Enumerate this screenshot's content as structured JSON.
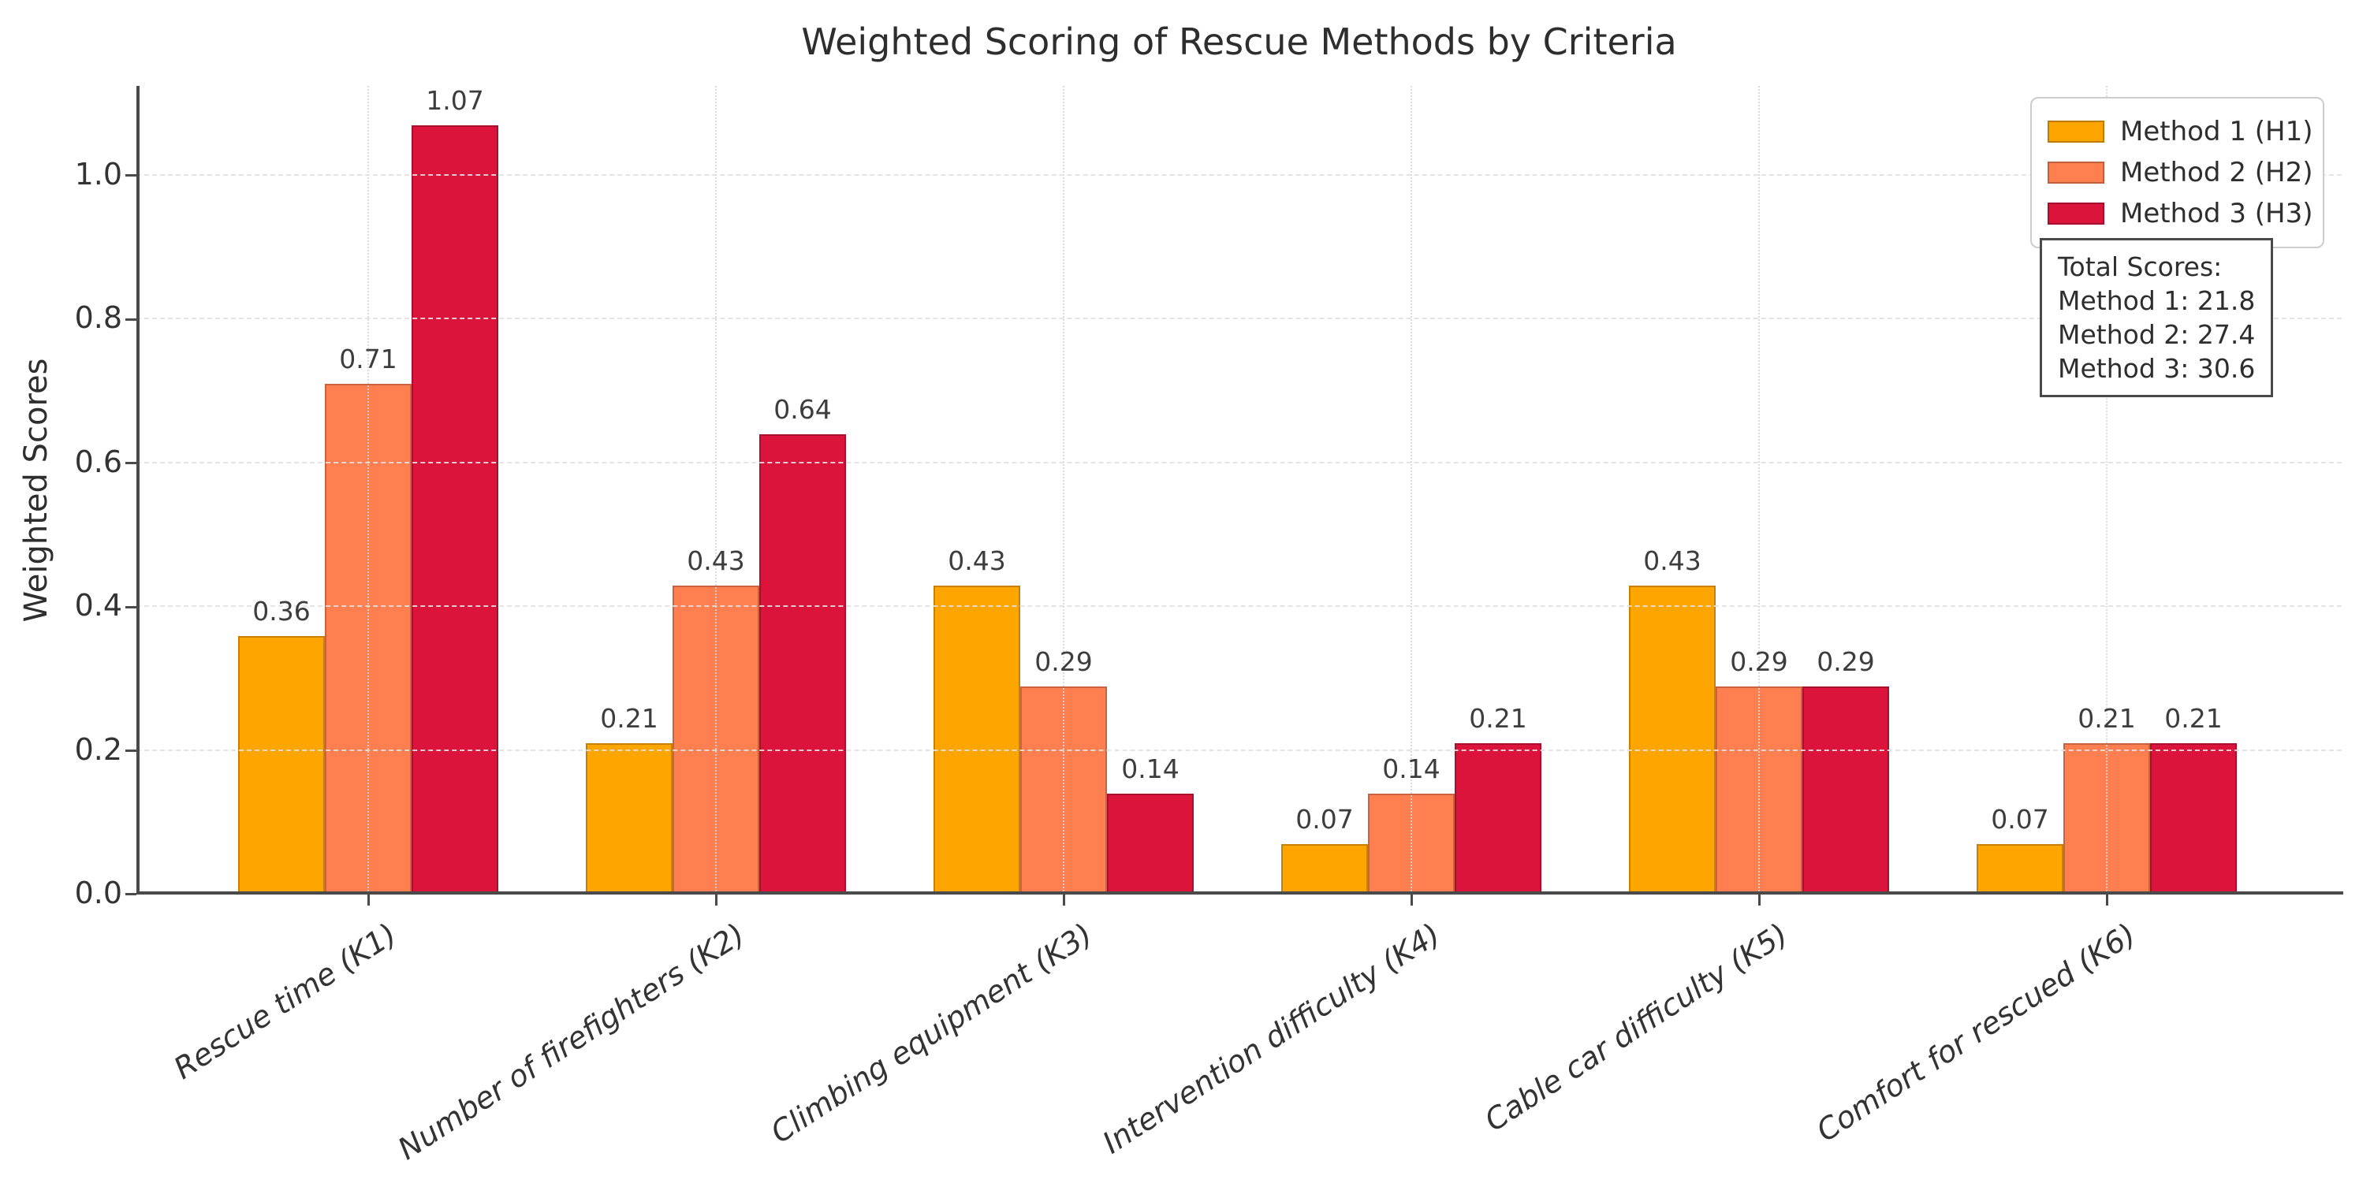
{
  "chart_data": {
    "type": "bar",
    "title": "Weighted Scoring of Rescue Methods by Criteria",
    "xlabel": "",
    "ylabel": "Weighted Scores",
    "categories": [
      "Rescue time (K1)",
      "Number of firefighters (K2)",
      "Climbing equipment (K3)",
      "Intervention difficulty (K4)",
      "Cable car difficulty (K5)",
      "Comfort for rescued (K6)"
    ],
    "series": [
      {
        "name": "Method 1 (H1)",
        "color": "#FFA500",
        "values": [
          0.36,
          0.21,
          0.43,
          0.07,
          0.43,
          0.07
        ]
      },
      {
        "name": "Method 2 (H2)",
        "color": "#FF7F50",
        "values": [
          0.71,
          0.43,
          0.29,
          0.14,
          0.29,
          0.21
        ]
      },
      {
        "name": "Method 3 (H3)",
        "color": "#DC143C",
        "values": [
          1.07,
          0.64,
          0.14,
          0.21,
          0.29,
          0.21
        ]
      }
    ],
    "y_ticks": [
      0.0,
      0.2,
      0.4,
      0.6,
      0.8,
      1.0
    ],
    "ylim": [
      0,
      1.125
    ],
    "grid": true,
    "bar_labels_decimals": 2,
    "legend_position": "upper right"
  },
  "annotation_box": {
    "title": "Total Scores:",
    "lines": [
      "Method 1: 21.8",
      "Method 2: 27.4",
      "Method 3: 30.6"
    ]
  }
}
